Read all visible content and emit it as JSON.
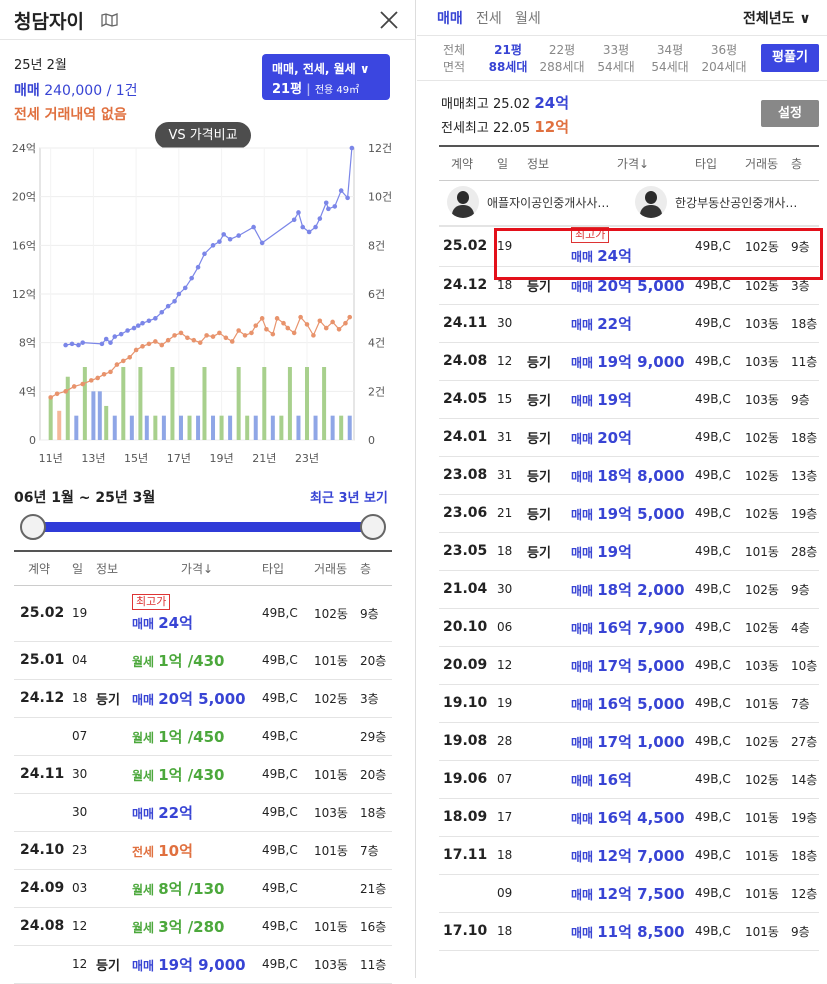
{
  "header": {
    "title": "청담자이"
  },
  "summary": {
    "year_month": "25년 2월",
    "sale_label": "매매",
    "sale_value": "240,000 / 1건",
    "jeonse_note": "전세 거래내역 없음",
    "type_selector_line1": "매매, 전세, 월세",
    "type_selector_pyeong": "21평",
    "type_selector_area": "전용 49㎡",
    "vs_button": "VS 가격비교"
  },
  "chart_data": {
    "type": "line",
    "x_ticks": [
      "11년",
      "13년",
      "15년",
      "17년",
      "19년",
      "21년",
      "23년"
    ],
    "y_left_ticks": [
      "24억",
      "20억",
      "16억",
      "12억",
      "8억",
      "4억",
      "0"
    ],
    "y_right_ticks": [
      "12건",
      "10건",
      "8건",
      "6건",
      "4건",
      "2건",
      "0"
    ],
    "ylim_left": [
      0,
      24
    ],
    "ylim_right": [
      0,
      12
    ],
    "xlim": [
      2010.5,
      2025.2
    ],
    "series": [
      {
        "color": "#7b86e8",
        "x": [
          2011.7,
          2012.0,
          2012.3,
          2012.5,
          2013.4,
          2013.6,
          2013.8,
          2014.0,
          2014.3,
          2014.6,
          2014.9,
          2015.1,
          2015.3,
          2015.6,
          2015.9,
          2016.2,
          2016.5,
          2016.8,
          2017.0,
          2017.3,
          2017.6,
          2017.9,
          2018.2,
          2018.6,
          2018.9,
          2019.1,
          2019.4,
          2019.8,
          2020.5,
          2020.9,
          2022.4,
          2022.6,
          2022.8,
          2023.1,
          2023.4,
          2023.6,
          2023.9,
          2024.0,
          2024.3,
          2024.6,
          2024.9,
          2025.1
        ],
        "y": [
          7.8,
          7.9,
          7.8,
          8.0,
          7.9,
          8.3,
          8.0,
          8.5,
          8.7,
          9.0,
          9.2,
          9.4,
          9.6,
          9.8,
          10.0,
          10.5,
          11.0,
          11.4,
          12.0,
          12.5,
          13.3,
          14.2,
          15.3,
          16.0,
          16.3,
          16.9,
          16.5,
          16.8,
          17.5,
          16.2,
          18.1,
          18.7,
          17.5,
          17.1,
          17.5,
          18.2,
          19.5,
          19.0,
          19.2,
          20.5,
          19.9,
          24.0
        ]
      },
      {
        "color": "#e8936c",
        "x": [
          2011.0,
          2011.3,
          2011.7,
          2012.1,
          2012.5,
          2012.9,
          2013.2,
          2013.5,
          2013.8,
          2014.1,
          2014.4,
          2014.7,
          2015.0,
          2015.3,
          2015.6,
          2015.9,
          2016.2,
          2016.5,
          2016.8,
          2017.1,
          2017.4,
          2017.7,
          2018.0,
          2018.3,
          2018.6,
          2018.9,
          2019.2,
          2019.5,
          2019.8,
          2020.1,
          2020.4,
          2020.6,
          2020.9,
          2021.1,
          2021.4,
          2021.6,
          2021.9,
          2022.1,
          2022.4,
          2022.7,
          2023.0,
          2023.3,
          2023.6,
          2023.9,
          2024.2,
          2024.5,
          2024.8,
          2025.0
        ],
        "y": [
          3.5,
          3.8,
          4.0,
          4.4,
          4.6,
          4.9,
          5.1,
          5.4,
          5.6,
          6.2,
          6.5,
          6.8,
          7.4,
          7.7,
          7.9,
          8.1,
          7.8,
          8.2,
          8.6,
          8.8,
          8.4,
          8.2,
          8.0,
          8.6,
          8.5,
          8.8,
          8.4,
          8.1,
          9.0,
          8.6,
          8.8,
          9.4,
          10.0,
          9.1,
          8.7,
          10.0,
          9.6,
          9.2,
          8.8,
          10.1,
          9.5,
          8.6,
          9.8,
          9.2,
          9.7,
          9.1,
          9.6,
          10.1
        ]
      }
    ],
    "volume_bars": [
      {
        "x": 2011.0,
        "c": 1.8,
        "color": "#a8d08d"
      },
      {
        "x": 2011.4,
        "c": 1.2,
        "color": "#f4b89a"
      },
      {
        "x": 2011.8,
        "c": 2.6,
        "color": "#a8d08d"
      },
      {
        "x": 2012.2,
        "c": 1.0,
        "color": "#8fa6e6"
      },
      {
        "x": 2012.6,
        "c": 3.0,
        "color": "#a8d08d"
      },
      {
        "x": 2013.0,
        "c": 2.0,
        "color": "#8fa6e6"
      },
      {
        "x": 2013.3,
        "c": 2.0,
        "color": "#8fa6e6"
      },
      {
        "x": 2013.6,
        "c": 1.4,
        "color": "#a8d08d"
      },
      {
        "x": 2014.0,
        "c": 1.0,
        "color": "#8fa6e6"
      },
      {
        "x": 2014.4,
        "c": 3.0,
        "color": "#a8d08d"
      },
      {
        "x": 2014.8,
        "c": 1.0,
        "color": "#8fa6e6"
      },
      {
        "x": 2015.2,
        "c": 3.0,
        "color": "#a8d08d"
      },
      {
        "x": 2015.5,
        "c": 1.0,
        "color": "#8fa6e6"
      },
      {
        "x": 2015.9,
        "c": 1.0,
        "color": "#a8d08d"
      },
      {
        "x": 2016.3,
        "c": 1.0,
        "color": "#8fa6e6"
      },
      {
        "x": 2016.7,
        "c": 3.0,
        "color": "#a8d08d"
      },
      {
        "x": 2017.1,
        "c": 1.0,
        "color": "#8fa6e6"
      },
      {
        "x": 2017.5,
        "c": 1.0,
        "color": "#a8d08d"
      },
      {
        "x": 2017.9,
        "c": 1.0,
        "color": "#8fa6e6"
      },
      {
        "x": 2018.2,
        "c": 3.0,
        "color": "#a8d08d"
      },
      {
        "x": 2018.6,
        "c": 1.0,
        "color": "#8fa6e6"
      },
      {
        "x": 2019.0,
        "c": 1.0,
        "color": "#a8d08d"
      },
      {
        "x": 2019.4,
        "c": 1.0,
        "color": "#8fa6e6"
      },
      {
        "x": 2019.8,
        "c": 3.0,
        "color": "#a8d08d"
      },
      {
        "x": 2020.2,
        "c": 1.0,
        "color": "#a8d08d"
      },
      {
        "x": 2020.6,
        "c": 1.0,
        "color": "#8fa6e6"
      },
      {
        "x": 2021.0,
        "c": 3.0,
        "color": "#a8d08d"
      },
      {
        "x": 2021.4,
        "c": 1.0,
        "color": "#8fa6e6"
      },
      {
        "x": 2021.8,
        "c": 1.0,
        "color": "#a8d08d"
      },
      {
        "x": 2022.2,
        "c": 3.0,
        "color": "#a8d08d"
      },
      {
        "x": 2022.6,
        "c": 1.0,
        "color": "#8fa6e6"
      },
      {
        "x": 2023.0,
        "c": 3.0,
        "color": "#a8d08d"
      },
      {
        "x": 2023.4,
        "c": 1.0,
        "color": "#8fa6e6"
      },
      {
        "x": 2023.8,
        "c": 3.0,
        "color": "#a8d08d"
      },
      {
        "x": 2024.2,
        "c": 1.0,
        "color": "#8fa6e6"
      },
      {
        "x": 2024.6,
        "c": 1.0,
        "color": "#a8d08d"
      },
      {
        "x": 2025.0,
        "c": 1.0,
        "color": "#8fa6e6"
      }
    ]
  },
  "range": {
    "label": "06년 1월 ~ 25년 3월",
    "recent_link": "최근 3년 보기"
  },
  "left_table": {
    "headers": [
      "계약",
      "일",
      "정보",
      "가격↓",
      "타입",
      "거래동",
      "층"
    ],
    "rows": [
      {
        "ym": "25.02",
        "day": "19",
        "info": "",
        "badge": "최고가",
        "ttype": "매매",
        "price": "24억",
        "kind": "sale",
        "unit": "49B,C",
        "dong": "102동",
        "floor": "9층"
      },
      {
        "ym": "25.01",
        "day": "04",
        "info": "",
        "badge": "",
        "ttype": "월세",
        "price": "1억 /430",
        "kind": "wolse",
        "unit": "49B,C",
        "dong": "101동",
        "floor": "20층"
      },
      {
        "ym": "24.12",
        "day": "18",
        "info": "등기",
        "badge": "",
        "ttype": "매매",
        "price": "20억 5,000",
        "kind": "sale",
        "unit": "49B,C",
        "dong": "102동",
        "floor": "3층"
      },
      {
        "ym": "",
        "day": "07",
        "info": "",
        "badge": "",
        "ttype": "월세",
        "price": "1억 /450",
        "kind": "wolse",
        "unit": "49B,C",
        "dong": "",
        "floor": "29층"
      },
      {
        "ym": "24.11",
        "day": "30",
        "info": "",
        "badge": "",
        "ttype": "월세",
        "price": "1억 /430",
        "kind": "wolse",
        "unit": "49B,C",
        "dong": "101동",
        "floor": "20층"
      },
      {
        "ym": "",
        "day": "30",
        "info": "",
        "badge": "",
        "ttype": "매매",
        "price": "22억",
        "kind": "sale",
        "unit": "49B,C",
        "dong": "103동",
        "floor": "18층"
      },
      {
        "ym": "24.10",
        "day": "23",
        "info": "",
        "badge": "",
        "ttype": "전세",
        "price": "10억",
        "kind": "jeonse",
        "unit": "49B,C",
        "dong": "101동",
        "floor": "7층"
      },
      {
        "ym": "24.09",
        "day": "03",
        "info": "",
        "badge": "",
        "ttype": "월세",
        "price": "8억 /130",
        "kind": "wolse",
        "unit": "49B,C",
        "dong": "",
        "floor": "21층"
      },
      {
        "ym": "24.08",
        "day": "12",
        "info": "",
        "badge": "",
        "ttype": "월세",
        "price": "3억 /280",
        "kind": "wolse",
        "unit": "49B,C",
        "dong": "101동",
        "floor": "16층"
      },
      {
        "ym": "",
        "day": "12",
        "info": "등기",
        "badge": "",
        "ttype": "매매",
        "price": "19억 9,000",
        "kind": "sale",
        "unit": "49B,C",
        "dong": "103동",
        "floor": "11층"
      }
    ]
  },
  "right": {
    "tabs": [
      "매매",
      "전세",
      "월세"
    ],
    "year_select": "전체년도",
    "pyeong_tabs": [
      {
        "l1": "전체",
        "l2": "면적",
        "on": false
      },
      {
        "l1": "21평",
        "l2": "88세대",
        "on": true
      },
      {
        "l1": "22평",
        "l2": "288세대",
        "on": false
      },
      {
        "l1": "33평",
        "l2": "54세대",
        "on": false
      },
      {
        "l1": "34평",
        "l2": "54세대",
        "on": false
      },
      {
        "l1": "36평",
        "l2": "204세대",
        "on": false
      }
    ],
    "pyeong_button": "평풀기",
    "max_sale_label": "매매최고",
    "max_sale_date": "25.02",
    "max_sale_value": "24억",
    "max_jeonse_label": "전세최고",
    "max_jeonse_date": "22.05",
    "max_jeonse_value": "12억",
    "settings_button": "설정",
    "headers": [
      "계약",
      "일",
      "정보",
      "가격↓",
      "타입",
      "거래동",
      "층"
    ],
    "agent1": "애플자이공인중개사사…",
    "agent2": "한강부동산공인중개사…",
    "rows": [
      {
        "ym": "25.02",
        "day": "19",
        "info": "",
        "badge": "최고가",
        "ttype": "매매",
        "price": "24억",
        "unit": "49B,C",
        "dong": "102동",
        "floor": "9층"
      },
      {
        "ym": "24.12",
        "day": "18",
        "info": "등기",
        "badge": "",
        "ttype": "매매",
        "price": "20억 5,000",
        "unit": "49B,C",
        "dong": "102동",
        "floor": "3층"
      },
      {
        "ym": "24.11",
        "day": "30",
        "info": "",
        "badge": "",
        "ttype": "매매",
        "price": "22억",
        "unit": "49B,C",
        "dong": "103동",
        "floor": "18층"
      },
      {
        "ym": "24.08",
        "day": "12",
        "info": "등기",
        "badge": "",
        "ttype": "매매",
        "price": "19억 9,000",
        "unit": "49B,C",
        "dong": "103동",
        "floor": "11층"
      },
      {
        "ym": "24.05",
        "day": "15",
        "info": "등기",
        "badge": "",
        "ttype": "매매",
        "price": "19억",
        "unit": "49B,C",
        "dong": "103동",
        "floor": "9층"
      },
      {
        "ym": "24.01",
        "day": "31",
        "info": "등기",
        "badge": "",
        "ttype": "매매",
        "price": "20억",
        "unit": "49B,C",
        "dong": "102동",
        "floor": "18층"
      },
      {
        "ym": "23.08",
        "day": "31",
        "info": "등기",
        "badge": "",
        "ttype": "매매",
        "price": "18억 8,000",
        "unit": "49B,C",
        "dong": "102동",
        "floor": "13층"
      },
      {
        "ym": "23.06",
        "day": "21",
        "info": "등기",
        "badge": "",
        "ttype": "매매",
        "price": "19억 5,000",
        "unit": "49B,C",
        "dong": "102동",
        "floor": "19층"
      },
      {
        "ym": "23.05",
        "day": "18",
        "info": "등기",
        "badge": "",
        "ttype": "매매",
        "price": "19억",
        "unit": "49B,C",
        "dong": "101동",
        "floor": "28층"
      },
      {
        "ym": "21.04",
        "day": "30",
        "info": "",
        "badge": "",
        "ttype": "매매",
        "price": "18억 2,000",
        "unit": "49B,C",
        "dong": "102동",
        "floor": "9층"
      },
      {
        "ym": "20.10",
        "day": "06",
        "info": "",
        "badge": "",
        "ttype": "매매",
        "price": "16억 7,900",
        "unit": "49B,C",
        "dong": "102동",
        "floor": "4층"
      },
      {
        "ym": "20.09",
        "day": "12",
        "info": "",
        "badge": "",
        "ttype": "매매",
        "price": "17억 5,000",
        "unit": "49B,C",
        "dong": "103동",
        "floor": "10층"
      },
      {
        "ym": "19.10",
        "day": "19",
        "info": "",
        "badge": "",
        "ttype": "매매",
        "price": "16억 5,000",
        "unit": "49B,C",
        "dong": "101동",
        "floor": "7층"
      },
      {
        "ym": "19.08",
        "day": "28",
        "info": "",
        "badge": "",
        "ttype": "매매",
        "price": "17억 1,000",
        "unit": "49B,C",
        "dong": "102동",
        "floor": "27층"
      },
      {
        "ym": "19.06",
        "day": "07",
        "info": "",
        "badge": "",
        "ttype": "매매",
        "price": "16억",
        "unit": "49B,C",
        "dong": "102동",
        "floor": "14층"
      },
      {
        "ym": "18.09",
        "day": "17",
        "info": "",
        "badge": "",
        "ttype": "매매",
        "price": "16억 4,500",
        "unit": "49B,C",
        "dong": "101동",
        "floor": "19층"
      },
      {
        "ym": "17.11",
        "day": "18",
        "info": "",
        "badge": "",
        "ttype": "매매",
        "price": "12억 7,000",
        "unit": "49B,C",
        "dong": "101동",
        "floor": "18층"
      },
      {
        "ym": "",
        "day": "09",
        "info": "",
        "badge": "",
        "ttype": "매매",
        "price": "12억 7,500",
        "unit": "49B,C",
        "dong": "101동",
        "floor": "12층"
      },
      {
        "ym": "17.10",
        "day": "18",
        "info": "",
        "badge": "",
        "ttype": "매매",
        "price": "11억 8,500",
        "unit": "49B,C",
        "dong": "101동",
        "floor": "9층"
      }
    ]
  },
  "colors": {
    "accent": "#3b46e0",
    "sale": "#3844d4",
    "jeonse": "#e0703f",
    "wolse": "#4ca83c",
    "highlight": "#e3101a"
  }
}
